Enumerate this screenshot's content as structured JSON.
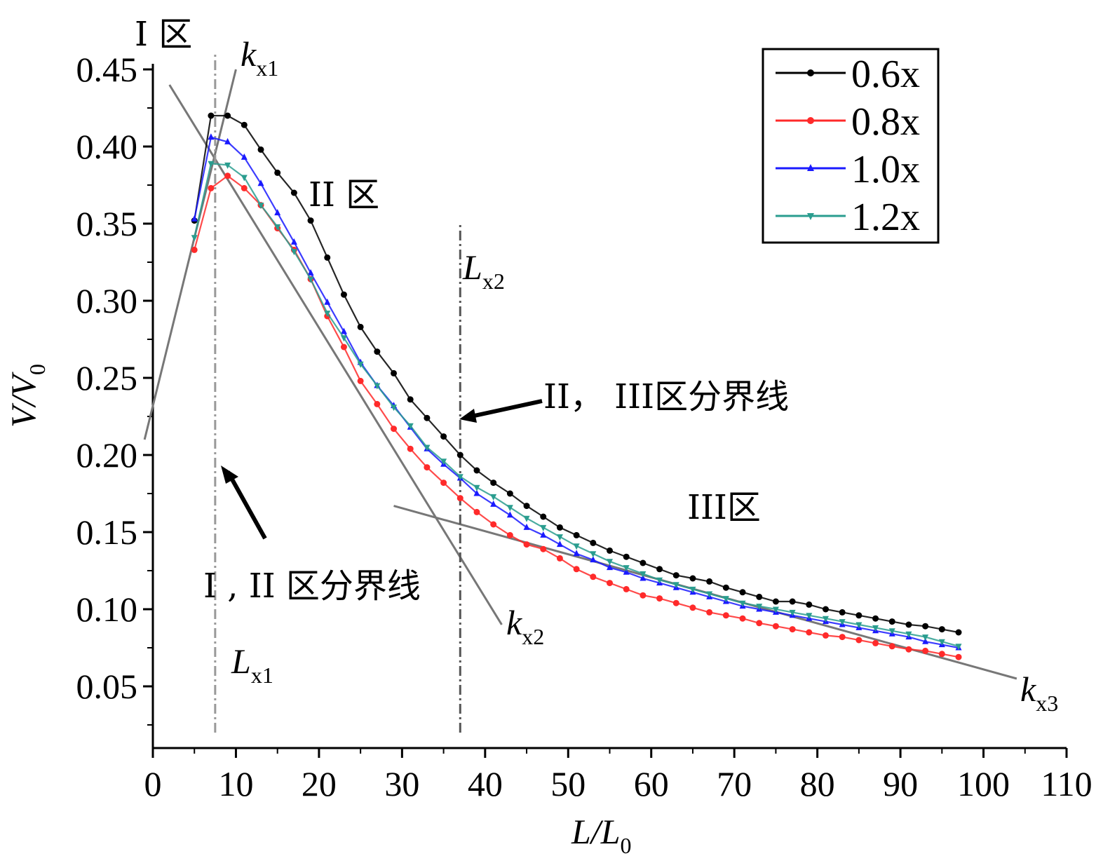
{
  "chart_data": {
    "type": "line",
    "xlabel": {
      "main": "L/L",
      "sub": "0"
    },
    "ylabel": {
      "main": "V/V",
      "sub": "0"
    },
    "xlim": [
      0,
      110
    ],
    "ylim": [
      0.01,
      0.45
    ],
    "x_ticks": [
      "0",
      "10",
      "20",
      "30",
      "40",
      "50",
      "60",
      "70",
      "80",
      "90",
      "100",
      "110"
    ],
    "x_tick_values": [
      0,
      10,
      20,
      30,
      40,
      50,
      60,
      70,
      80,
      90,
      100,
      110
    ],
    "y_ticks": [
      "0.05",
      "0.10",
      "0.15",
      "0.20",
      "0.25",
      "0.30",
      "0.35",
      "0.40",
      "0.45"
    ],
    "y_tick_values": [
      0.05,
      0.1,
      0.15,
      0.2,
      0.25,
      0.3,
      0.35,
      0.4,
      0.45
    ],
    "legend_position": "top-right",
    "x": [
      5,
      7,
      9,
      11,
      13,
      15,
      17,
      19,
      21,
      23,
      25,
      27,
      29,
      31,
      33,
      35,
      37,
      39,
      41,
      43,
      45,
      47,
      49,
      51,
      53,
      55,
      57,
      59,
      61,
      63,
      65,
      67,
      69,
      71,
      73,
      75,
      77,
      79,
      81,
      83,
      85,
      87,
      89,
      91,
      93,
      95,
      97
    ],
    "series": [
      {
        "name": "0.6x",
        "color": "#000000",
        "marker": "circle",
        "values": [
          0.352,
          0.42,
          0.42,
          0.414,
          0.398,
          0.383,
          0.37,
          0.352,
          0.328,
          0.304,
          0.283,
          0.267,
          0.253,
          0.236,
          0.224,
          0.212,
          0.2,
          0.19,
          0.182,
          0.175,
          0.167,
          0.16,
          0.153,
          0.148,
          0.143,
          0.138,
          0.134,
          0.13,
          0.126,
          0.122,
          0.12,
          0.118,
          0.114,
          0.111,
          0.108,
          0.105,
          0.105,
          0.103,
          0.1,
          0.098,
          0.096,
          0.094,
          0.092,
          0.09,
          0.089,
          0.087,
          0.085
        ]
      },
      {
        "name": "0.8x",
        "color": "#ff2a2a",
        "marker": "circle",
        "values": [
          0.333,
          0.373,
          0.381,
          0.373,
          0.362,
          0.347,
          0.333,
          0.314,
          0.29,
          0.27,
          0.248,
          0.233,
          0.217,
          0.204,
          0.192,
          0.182,
          0.172,
          0.163,
          0.155,
          0.148,
          0.142,
          0.139,
          0.133,
          0.126,
          0.121,
          0.117,
          0.113,
          0.109,
          0.107,
          0.104,
          0.101,
          0.098,
          0.096,
          0.094,
          0.091,
          0.089,
          0.087,
          0.085,
          0.083,
          0.082,
          0.08,
          0.078,
          0.076,
          0.074,
          0.073,
          0.071,
          0.069
        ]
      },
      {
        "name": "1.0x",
        "color": "#1a1aff",
        "marker": "triangle-up",
        "values": [
          0.353,
          0.406,
          0.403,
          0.393,
          0.376,
          0.357,
          0.338,
          0.318,
          0.299,
          0.28,
          0.26,
          0.245,
          0.232,
          0.218,
          0.204,
          0.194,
          0.185,
          0.175,
          0.168,
          0.161,
          0.153,
          0.148,
          0.142,
          0.136,
          0.132,
          0.127,
          0.124,
          0.12,
          0.117,
          0.114,
          0.111,
          0.108,
          0.105,
          0.102,
          0.1,
          0.098,
          0.096,
          0.094,
          0.092,
          0.09,
          0.088,
          0.086,
          0.084,
          0.082,
          0.079,
          0.077,
          0.075
        ]
      },
      {
        "name": "1.2x",
        "color": "#2a9d8f",
        "marker": "triangle-down",
        "values": [
          0.341,
          0.389,
          0.388,
          0.38,
          0.362,
          0.348,
          0.332,
          0.314,
          0.292,
          0.276,
          0.259,
          0.245,
          0.231,
          0.219,
          0.205,
          0.196,
          0.186,
          0.179,
          0.173,
          0.166,
          0.159,
          0.153,
          0.147,
          0.141,
          0.136,
          0.131,
          0.127,
          0.123,
          0.119,
          0.116,
          0.113,
          0.11,
          0.107,
          0.104,
          0.102,
          0.1,
          0.098,
          0.096,
          0.094,
          0.092,
          0.09,
          0.088,
          0.086,
          0.084,
          0.082,
          0.079,
          0.076
        ]
      }
    ],
    "fit_lines": [
      {
        "name": "k_x1",
        "from": [
          -1,
          0.21
        ],
        "to": [
          10,
          0.45
        ]
      },
      {
        "name": "k_x2",
        "from": [
          2,
          0.44
        ],
        "to": [
          42,
          0.09
        ]
      },
      {
        "name": "k_x3",
        "from": [
          29,
          0.167
        ],
        "to": [
          104,
          0.055
        ]
      }
    ],
    "divider_lines": [
      {
        "name": "L_x1",
        "x": 7.5,
        "y_range": [
          0.02,
          0.46
        ]
      },
      {
        "name": "L_x2",
        "x": 37,
        "y_range": [
          0.02,
          0.35
        ]
      }
    ],
    "annotations": {
      "zone1": "I 区",
      "zone2": "II 区",
      "zone3": "III区",
      "kx1": {
        "main": "k",
        "sub": "x1"
      },
      "kx2": {
        "main": "k",
        "sub": "x2"
      },
      "kx3": {
        "main": "k",
        "sub": "x3"
      },
      "Lx1": {
        "main": "L",
        "sub": "x1"
      },
      "Lx2": {
        "main": "L",
        "sub": "x2"
      },
      "boundary12": "I , II 区分界线",
      "boundary23": "II， III区分界线"
    }
  }
}
